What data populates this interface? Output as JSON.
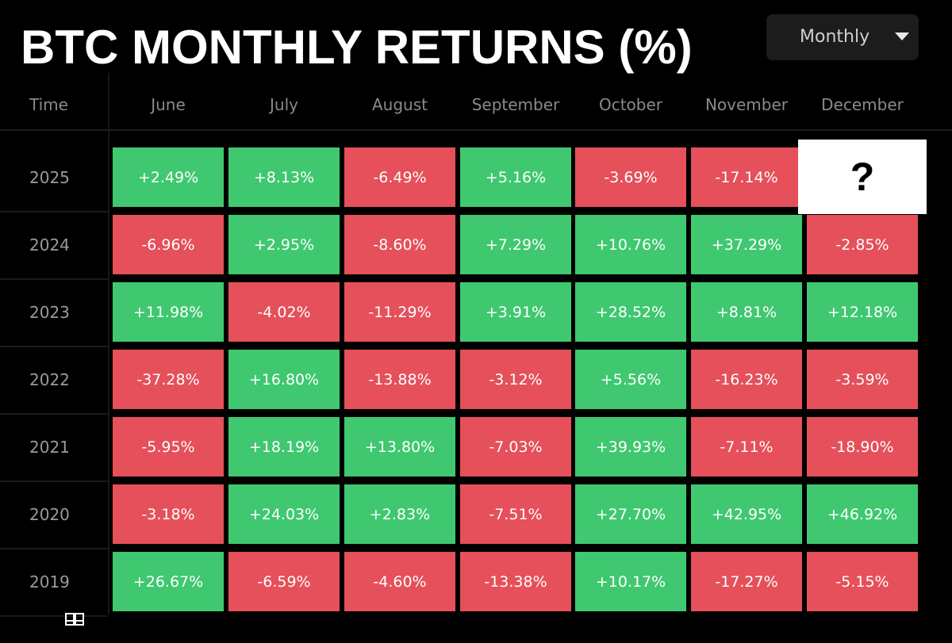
{
  "title": "BTC MONTHLY RETURNS (%)",
  "dropdown": {
    "label": "Monthly",
    "icon": "caret-down-icon"
  },
  "colors": {
    "positive": "#3fc870",
    "negative": "#e5505a",
    "background": "#000000"
  },
  "chart_data": {
    "type": "heatmap",
    "title": "BTC MONTHLY RETURNS (%)",
    "row_header": "Time",
    "columns": [
      "June",
      "July",
      "August",
      "September",
      "October",
      "November",
      "December"
    ],
    "rows": [
      {
        "year": "2025",
        "values": [
          "+2.49%",
          "+8.13%",
          "-6.49%",
          "+5.16%",
          "-3.69%",
          "-17.14%",
          null
        ]
      },
      {
        "year": "2024",
        "values": [
          "-6.96%",
          "+2.95%",
          "-8.60%",
          "+7.29%",
          "+10.76%",
          "+37.29%",
          "-2.85%"
        ]
      },
      {
        "year": "2023",
        "values": [
          "+11.98%",
          "-4.02%",
          "-11.29%",
          "+3.91%",
          "+28.52%",
          "+8.81%",
          "+12.18%"
        ]
      },
      {
        "year": "2022",
        "values": [
          "-37.28%",
          "+16.80%",
          "-13.88%",
          "-3.12%",
          "+5.56%",
          "-16.23%",
          "-3.59%"
        ]
      },
      {
        "year": "2021",
        "values": [
          "-5.95%",
          "+18.19%",
          "+13.80%",
          "-7.03%",
          "+39.93%",
          "-7.11%",
          "-18.90%"
        ]
      },
      {
        "year": "2020",
        "values": [
          "-3.18%",
          "+24.03%",
          "+2.83%",
          "-7.51%",
          "+27.70%",
          "+42.95%",
          "+46.92%"
        ]
      },
      {
        "year": "2019",
        "values": [
          "+26.67%",
          "-6.59%",
          "-4.60%",
          "-13.38%",
          "+10.17%",
          "-17.27%",
          "-5.15%"
        ]
      }
    ],
    "unknown_cell": {
      "year": "2025",
      "month": "December",
      "text": "?"
    }
  },
  "footer_icon": "book-icon"
}
